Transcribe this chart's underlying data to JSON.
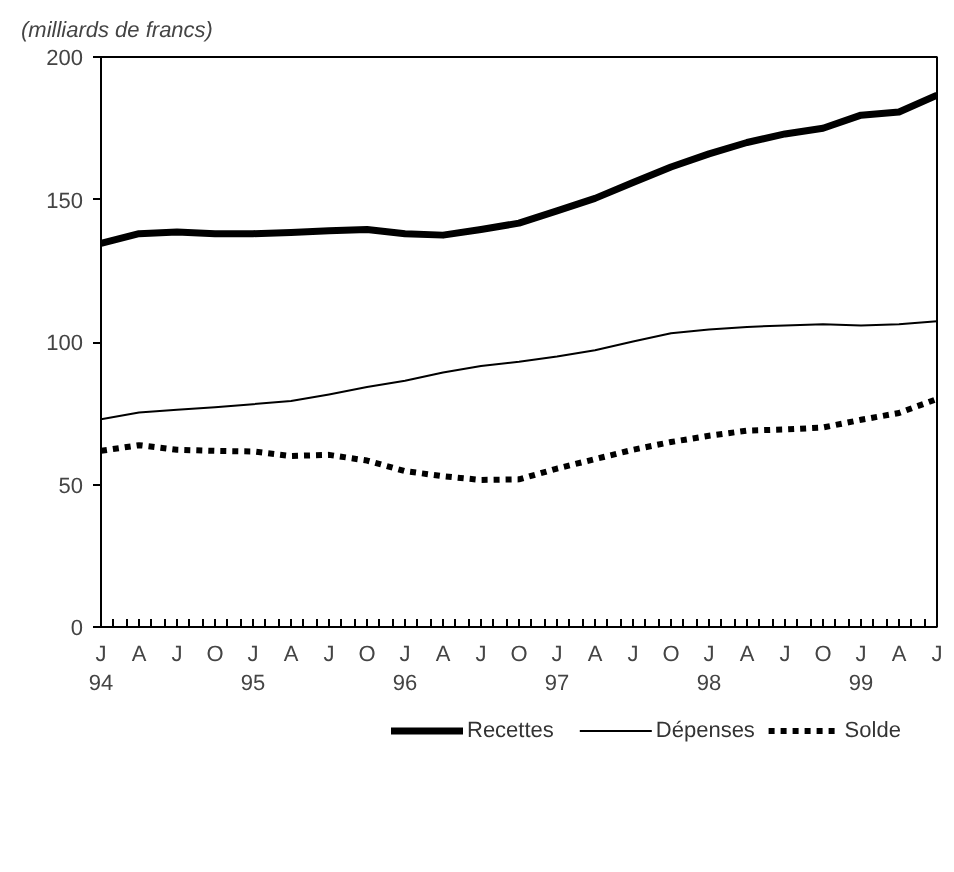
{
  "chart_data": {
    "type": "line",
    "ylabel": "(milliards de francs)",
    "x": [
      "1994-01",
      "1994-04",
      "1994-07",
      "1994-10",
      "1995-01",
      "1995-04",
      "1995-07",
      "1995-10",
      "1996-01",
      "1996-04",
      "1996-07",
      "1996-10",
      "1997-01",
      "1997-04",
      "1997-07",
      "1997-10",
      "1998-01",
      "1998-04",
      "1998-07",
      "1998-10",
      "1999-01",
      "1999-04",
      "1999-07"
    ],
    "series": [
      {
        "name": "Recettes",
        "color": "#000000",
        "line_style": "solid",
        "values": [
          134.6,
          138,
          138.6,
          138,
          138,
          138.4,
          139,
          139.5,
          138,
          137.5,
          139.5,
          141.7,
          146,
          150.4,
          156,
          161.4,
          166,
          170,
          173,
          175,
          179.6,
          180.7,
          186.6
        ]
      },
      {
        "name": "Dépenses",
        "color": "#000000",
        "line_style": "solid",
        "values": [
          72.9,
          75.3,
          76.2,
          77.1,
          78.2,
          79.3,
          81.6,
          84.2,
          86.4,
          89.3,
          91.6,
          93.1,
          94.9,
          97.1,
          100.2,
          103.1,
          104.4,
          105.3,
          105.8,
          106.2,
          105.8,
          106.2,
          107.3
        ]
      },
      {
        "name": "Solde",
        "color": "#000000",
        "line_style": "dashed",
        "values": [
          61.8,
          63.8,
          62.2,
          61.8,
          61.6,
          60,
          60.4,
          58.4,
          54.7,
          52.9,
          51.6,
          51.8,
          55.6,
          58.9,
          62.2,
          64.9,
          67.1,
          68.9,
          69.3,
          70,
          72.7,
          75.1,
          80
        ]
      }
    ],
    "xlim": [
      "1994-01",
      "1999-07"
    ],
    "xticks": [
      {
        "value": "1994-01",
        "label": "J\n94"
      },
      {
        "value": "1994-02",
        "label": null
      },
      {
        "value": "1994-03",
        "label": null
      },
      {
        "value": "1994-04",
        "label": "A"
      },
      {
        "value": "1994-05",
        "label": null
      },
      {
        "value": "1994-06",
        "label": null
      },
      {
        "value": "1994-07",
        "label": "J"
      },
      {
        "value": "1994-08",
        "label": null
      },
      {
        "value": "1994-09",
        "label": null
      },
      {
        "value": "1994-10",
        "label": "O"
      },
      {
        "value": "1994-11",
        "label": null
      },
      {
        "value": "1994-12",
        "label": null
      },
      {
        "value": "1995-01",
        "label": "J\n95"
      },
      {
        "value": "1995-02",
        "label": null
      },
      {
        "value": "1995-03",
        "label": null
      },
      {
        "value": "1995-04",
        "label": "A"
      },
      {
        "value": "1995-05",
        "label": null
      },
      {
        "value": "1995-06",
        "label": null
      },
      {
        "value": "1995-07",
        "label": "J"
      },
      {
        "value": "1995-08",
        "label": null
      },
      {
        "value": "1995-09",
        "label": null
      },
      {
        "value": "1995-10",
        "label": "O"
      },
      {
        "value": "1995-11",
        "label": null
      },
      {
        "value": "1995-12",
        "label": null
      },
      {
        "value": "1996-01",
        "label": "J\n96"
      },
      {
        "value": "1996-02",
        "label": null
      },
      {
        "value": "1996-03",
        "label": null
      },
      {
        "value": "1996-04",
        "label": "A"
      },
      {
        "value": "1996-05",
        "label": null
      },
      {
        "value": "1996-06",
        "label": null
      },
      {
        "value": "1996-07",
        "label": "J"
      },
      {
        "value": "1996-08",
        "label": null
      },
      {
        "value": "1996-09",
        "label": null
      },
      {
        "value": "1996-10",
        "label": "O"
      },
      {
        "value": "1996-11",
        "label": null
      },
      {
        "value": "1996-12",
        "label": null
      },
      {
        "value": "1997-01",
        "label": "J\n97"
      },
      {
        "value": "1997-02",
        "label": null
      },
      {
        "value": "1997-03",
        "label": null
      },
      {
        "value": "1997-04",
        "label": "A"
      },
      {
        "value": "1997-05",
        "label": null
      },
      {
        "value": "1997-06",
        "label": null
      },
      {
        "value": "1997-07",
        "label": "J"
      },
      {
        "value": "1997-08",
        "label": null
      },
      {
        "value": "1997-09",
        "label": null
      },
      {
        "value": "1997-10",
        "label": "O"
      },
      {
        "value": "1997-11",
        "label": null
      },
      {
        "value": "1997-12",
        "label": null
      },
      {
        "value": "1998-01",
        "label": "J\n98"
      },
      {
        "value": "1998-02",
        "label": null
      },
      {
        "value": "1998-03",
        "label": null
      },
      {
        "value": "1998-04",
        "label": "A"
      },
      {
        "value": "1998-05",
        "label": null
      },
      {
        "value": "1998-06",
        "label": null
      },
      {
        "value": "1998-07",
        "label": "J"
      },
      {
        "value": "1998-08",
        "label": null
      },
      {
        "value": "1998-09",
        "label": null
      },
      {
        "value": "1998-10",
        "label": "O"
      },
      {
        "value": "1998-11",
        "label": null
      },
      {
        "value": "1998-12",
        "label": null
      },
      {
        "value": "1999-01",
        "label": "J\n99"
      },
      {
        "value": "1999-02",
        "label": null
      },
      {
        "value": "1999-03",
        "label": null
      },
      {
        "value": "1999-04",
        "label": "A"
      },
      {
        "value": "1999-05",
        "label": null
      },
      {
        "value": "1999-06",
        "label": null
      },
      {
        "value": "1999-07",
        "label": "J"
      }
    ],
    "ylim": [
      0,
      200
    ],
    "yticks": [
      0,
      50,
      100,
      150,
      200
    ],
    "grid": false,
    "legend": "bottom",
    "marker": "none"
  }
}
